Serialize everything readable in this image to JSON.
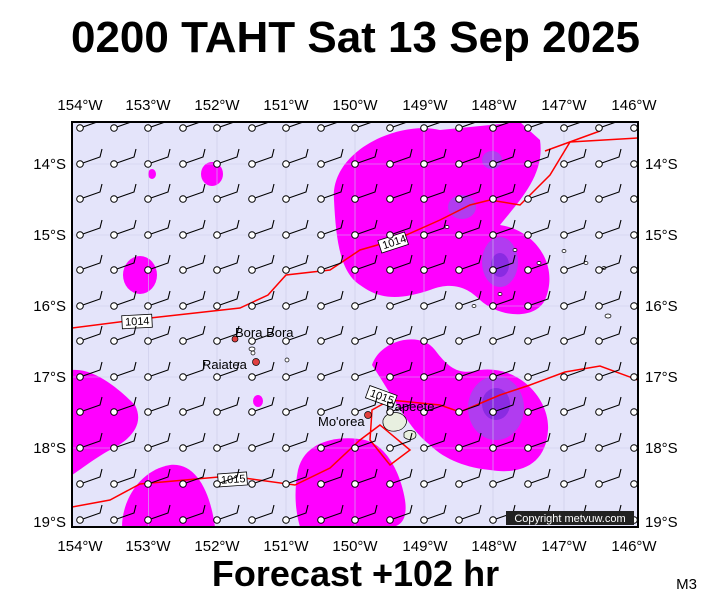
{
  "header": {
    "title": "0200 TAHT Sat 13 Sep 2025"
  },
  "footer": {
    "forecast": "Forecast +102 hr",
    "model": "M3"
  },
  "map": {
    "lon_labels": [
      "154°W",
      "153°W",
      "152°W",
      "151°W",
      "150°W",
      "149°W",
      "148°W",
      "147°W",
      "146°W"
    ],
    "lat_labels": [
      "14°S",
      "15°S",
      "16°S",
      "17°S",
      "18°S",
      "19°S"
    ],
    "places": [
      "Bora Bora",
      "Raiatea",
      "Mo'orea",
      "Papeete"
    ],
    "isobars": [
      "1014",
      "1014",
      "1015",
      "1015"
    ],
    "copyright": "Copyright metvuw.com",
    "colors": {
      "background": "#e4e4fa",
      "rain_light": "#ff00ff",
      "rain_medium": "#b13cf0",
      "rain_heavy": "#8a2be2",
      "isobar": "#ff0000",
      "land": "#ffffff"
    }
  }
}
